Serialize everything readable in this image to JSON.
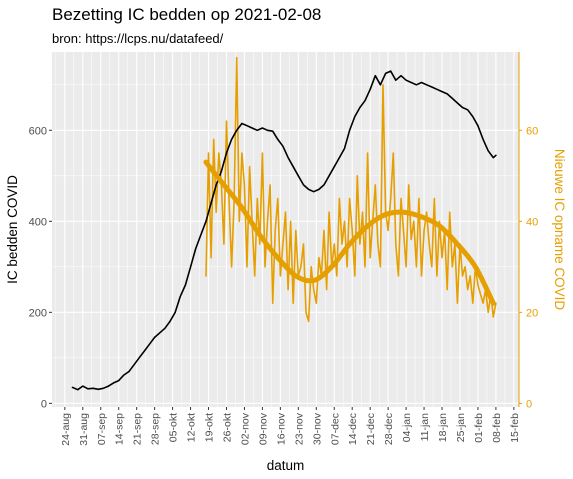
{
  "title": "Bezetting IC bedden op 2021-02-08",
  "subtitle": "bron: https://lcps.nu/datafeed/",
  "colors": {
    "panel": "#ebebeb",
    "grid": "#ffffff",
    "primary": "#000000",
    "secondary": "#e69f00"
  },
  "chart_data": {
    "type": "line",
    "xlabel": "datum",
    "ylabel": "IC bedden COVID",
    "y2label": "Nieuwe IC opname COVID",
    "xlim": [
      "2020-08-19",
      "2021-02-17"
    ],
    "ylim": [
      -8,
      772
    ],
    "y2lim": [
      -0.8,
      77.2
    ],
    "yticks": [
      0,
      200,
      400,
      600
    ],
    "y2ticks": [
      0,
      20,
      40,
      60
    ],
    "xticks": [
      "2020-08-24",
      "2020-08-31",
      "2020-09-07",
      "2020-09-14",
      "2020-09-21",
      "2020-09-28",
      "2020-10-05",
      "2020-10-12",
      "2020-10-19",
      "2020-10-26",
      "2020-11-02",
      "2020-11-09",
      "2020-11-16",
      "2020-11-23",
      "2020-11-30",
      "2020-12-07",
      "2020-12-14",
      "2020-12-21",
      "2020-12-28",
      "2021-01-04",
      "2021-01-11",
      "2021-01-18",
      "2021-01-25",
      "2021-02-01",
      "2021-02-08",
      "2021-02-15"
    ],
    "xticklabels": [
      "24-aug",
      "31-aug",
      "07-sep",
      "14-sep",
      "21-sep",
      "28-sep",
      "05-okt",
      "12-okt",
      "19-okt",
      "26-okt",
      "02-nov",
      "09-nov",
      "16-nov",
      "23-nov",
      "30-nov",
      "07-dec",
      "14-dec",
      "21-dec",
      "28-dec",
      "04-jan",
      "11-jan",
      "18-jan",
      "25-jan",
      "01-feb",
      "08-feb",
      "15-feb"
    ],
    "grid": true,
    "series": [
      {
        "axis": "left",
        "x": [
          "2020-08-27",
          "2020-08-29",
          "2020-08-31",
          "2020-09-02",
          "2020-09-04",
          "2020-09-06",
          "2020-09-08",
          "2020-09-10",
          "2020-09-12",
          "2020-09-14",
          "2020-09-16",
          "2020-09-18",
          "2020-09-20",
          "2020-09-22",
          "2020-09-24",
          "2020-09-26",
          "2020-09-28",
          "2020-09-30",
          "2020-10-02",
          "2020-10-04",
          "2020-10-06",
          "2020-10-08",
          "2020-10-10",
          "2020-10-12",
          "2020-10-14",
          "2020-10-16",
          "2020-10-18",
          "2020-10-20",
          "2020-10-22",
          "2020-10-24",
          "2020-10-26",
          "2020-10-28",
          "2020-10-30",
          "2020-11-01",
          "2020-11-03",
          "2020-11-05",
          "2020-11-07",
          "2020-11-09",
          "2020-11-11",
          "2020-11-13",
          "2020-11-15",
          "2020-11-17",
          "2020-11-19",
          "2020-11-21",
          "2020-11-23",
          "2020-11-25",
          "2020-11-27",
          "2020-11-29",
          "2020-12-01",
          "2020-12-03",
          "2020-12-05",
          "2020-12-07",
          "2020-12-09",
          "2020-12-11",
          "2020-12-13",
          "2020-12-15",
          "2020-12-17",
          "2020-12-19",
          "2020-12-21",
          "2020-12-23",
          "2020-12-25",
          "2020-12-27",
          "2020-12-29",
          "2020-12-31",
          "2021-01-02",
          "2021-01-04",
          "2021-01-06",
          "2021-01-08",
          "2021-01-10",
          "2021-01-12",
          "2021-01-14",
          "2021-01-16",
          "2021-01-18",
          "2021-01-20",
          "2021-01-22",
          "2021-01-24",
          "2021-01-26",
          "2021-01-28",
          "2021-01-30",
          "2021-02-01",
          "2021-02-03",
          "2021-02-05",
          "2021-02-07",
          "2021-02-08"
        ],
        "values": [
          35,
          30,
          38,
          32,
          33,
          31,
          33,
          38,
          45,
          50,
          62,
          70,
          85,
          100,
          115,
          130,
          145,
          155,
          165,
          180,
          200,
          235,
          260,
          300,
          340,
          370,
          400,
          440,
          480,
          510,
          550,
          580,
          600,
          615,
          610,
          605,
          600,
          605,
          600,
          598,
          580,
          565,
          540,
          520,
          500,
          480,
          470,
          465,
          470,
          480,
          500,
          520,
          540,
          560,
          600,
          630,
          650,
          665,
          690,
          720,
          700,
          725,
          730,
          710,
          720,
          710,
          705,
          700,
          705,
          700,
          695,
          690,
          685,
          680,
          670,
          660,
          650,
          645,
          630,
          610,
          580,
          555,
          540,
          545
        ]
      },
      {
        "axis": "right",
        "x": [
          "2020-10-18",
          "2020-10-19",
          "2020-10-20",
          "2020-10-21",
          "2020-10-22",
          "2020-10-23",
          "2020-10-24",
          "2020-10-25",
          "2020-10-26",
          "2020-10-27",
          "2020-10-28",
          "2020-10-29",
          "2020-10-30",
          "2020-10-31",
          "2020-11-01",
          "2020-11-02",
          "2020-11-03",
          "2020-11-04",
          "2020-11-05",
          "2020-11-06",
          "2020-11-07",
          "2020-11-08",
          "2020-11-09",
          "2020-11-10",
          "2020-11-11",
          "2020-11-12",
          "2020-11-13",
          "2020-11-14",
          "2020-11-15",
          "2020-11-16",
          "2020-11-17",
          "2020-11-18",
          "2020-11-19",
          "2020-11-20",
          "2020-11-21",
          "2020-11-22",
          "2020-11-23",
          "2020-11-24",
          "2020-11-25",
          "2020-11-26",
          "2020-11-27",
          "2020-11-28",
          "2020-11-29",
          "2020-11-30",
          "2020-12-01",
          "2020-12-02",
          "2020-12-03",
          "2020-12-04",
          "2020-12-05",
          "2020-12-06",
          "2020-12-07",
          "2020-12-08",
          "2020-12-09",
          "2020-12-10",
          "2020-12-11",
          "2020-12-12",
          "2020-12-13",
          "2020-12-14",
          "2020-12-15",
          "2020-12-16",
          "2020-12-17",
          "2020-12-18",
          "2020-12-19",
          "2020-12-20",
          "2020-12-21",
          "2020-12-22",
          "2020-12-23",
          "2020-12-24",
          "2020-12-25",
          "2020-12-26",
          "2020-12-27",
          "2020-12-28",
          "2020-12-29",
          "2020-12-30",
          "2020-12-31",
          "2021-01-01",
          "2021-01-02",
          "2021-01-03",
          "2021-01-04",
          "2021-01-05",
          "2021-01-06",
          "2021-01-07",
          "2021-01-08",
          "2021-01-09",
          "2021-01-10",
          "2021-01-11",
          "2021-01-12",
          "2021-01-13",
          "2021-01-14",
          "2021-01-15",
          "2021-01-16",
          "2021-01-17",
          "2021-01-18",
          "2021-01-19",
          "2021-01-20",
          "2021-01-21",
          "2021-01-22",
          "2021-01-23",
          "2021-01-24",
          "2021-01-25",
          "2021-01-26",
          "2021-01-27",
          "2021-01-28",
          "2021-01-29",
          "2021-01-30",
          "2021-01-31",
          "2021-02-01",
          "2021-02-02",
          "2021-02-03",
          "2021-02-04",
          "2021-02-05",
          "2021-02-06",
          "2021-02-07",
          "2021-02-08"
        ],
        "values": [
          28,
          55,
          32,
          58,
          42,
          55,
          48,
          35,
          62,
          45,
          30,
          45,
          76,
          40,
          55,
          48,
          30,
          52,
          40,
          28,
          45,
          35,
          55,
          30,
          40,
          48,
          22,
          38,
          45,
          28,
          35,
          42,
          25,
          40,
          22,
          38,
          28,
          30,
          35,
          20,
          18,
          30,
          25,
          22,
          32,
          28,
          38,
          25,
          42,
          30,
          35,
          28,
          45,
          35,
          40,
          30,
          45,
          38,
          28,
          50,
          35,
          42,
          30,
          55,
          32,
          40,
          48,
          35,
          30,
          70,
          42,
          38,
          45,
          55,
          35,
          28,
          45,
          38,
          30,
          48,
          36,
          40,
          30,
          45,
          28,
          38,
          42,
          35,
          30,
          45,
          28,
          40,
          32,
          38,
          25,
          42,
          30,
          35,
          22,
          35,
          28,
          30,
          25,
          28,
          22,
          30,
          26,
          24,
          22,
          25,
          20,
          24,
          19,
          22
        ]
      },
      {
        "axis": "right",
        "name": "",
        "x": [
          "2020-10-18",
          "2020-10-25",
          "2020-11-01",
          "2020-11-08",
          "2020-11-15",
          "2020-11-22",
          "2020-11-29",
          "2020-12-06",
          "2020-12-13",
          "2020-12-20",
          "2020-12-27",
          "2021-01-03",
          "2021-01-10",
          "2021-01-17",
          "2021-01-24",
          "2021-01-31",
          "2021-02-07"
        ],
        "values": [
          53,
          48,
          43,
          37,
          32,
          28,
          27,
          30,
          35,
          39,
          41.5,
          42,
          41,
          39,
          35,
          30,
          22
        ]
      }
    ]
  }
}
